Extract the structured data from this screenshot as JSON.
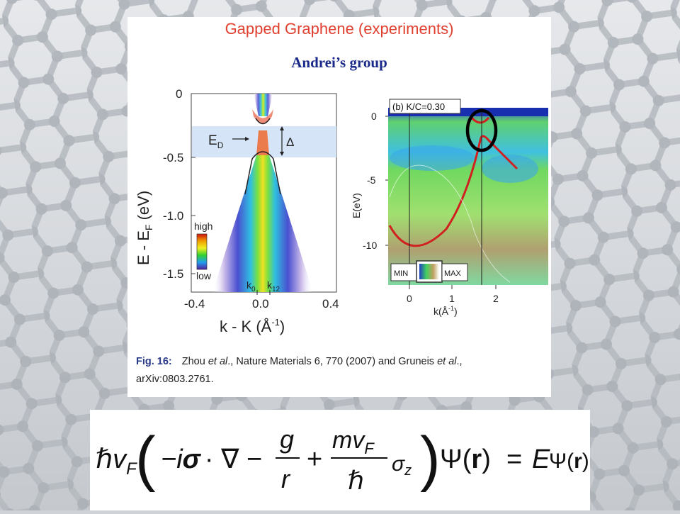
{
  "slide": {
    "title": "Gapped Graphene (experiments)",
    "subtitle": "Andrei’s group"
  },
  "left_plot": {
    "ylabel_main": "E - E",
    "ylabel_sub": "F",
    "ylabel_unit": " (eV)",
    "xlabel": "k - K (Å",
    "xlabel_sup": "-1",
    "xlabel_end": ")",
    "y_ticks": [
      "0",
      "-0.5",
      "-1.0",
      "-1.5"
    ],
    "x_ticks": [
      "-0.4",
      "0.0",
      "0.4"
    ],
    "ed_label": "E",
    "ed_sub": "D",
    "delta_label": "Δ",
    "colorbar_high": "high",
    "colorbar_low": "low",
    "k0_label": "k",
    "k0_sub": "0",
    "k12_label": "k",
    "k12_sub": "12"
  },
  "right_plot": {
    "panel_label": "(b) K/C=0.30",
    "ylabel": "E(eV)",
    "xlabel": "k(Å",
    "xlabel_sup": "-1",
    "xlabel_end": ")",
    "y_ticks": [
      "0",
      "-5",
      "-10"
    ],
    "x_ticks": [
      "0",
      "1",
      "2"
    ],
    "colorbar_min": "MIN",
    "colorbar_max": "MAX"
  },
  "caption": {
    "fig_label": "Fig. 16:",
    "text_1": "Zhou ",
    "etal_1": "et al",
    "text_2": "., Nature Materials 6, 770 (2007) and Gruneis ",
    "etal_2": "et al",
    "text_3": ".,",
    "text_4": "arXiv:0803.2761."
  },
  "equation": {
    "hbar": "ℏ",
    "v": "v",
    "v_sub": "F",
    "minus_i": "−i",
    "sigma": "σ",
    "dot_nabla": "· ∇ −",
    "g": "g",
    "r": "r",
    "plus": "+",
    "m": "mv",
    "m_sub": "F",
    "hbar2": "ℏ",
    "sigma_z": "σ",
    "sigma_z_sub": "z",
    "psi": "Ψ(",
    "bold_r": "r",
    "close": ")",
    "equals": "=",
    "E": "E",
    "psi2": "Ψ(",
    "bold_r2": "r",
    "close2": ")"
  }
}
